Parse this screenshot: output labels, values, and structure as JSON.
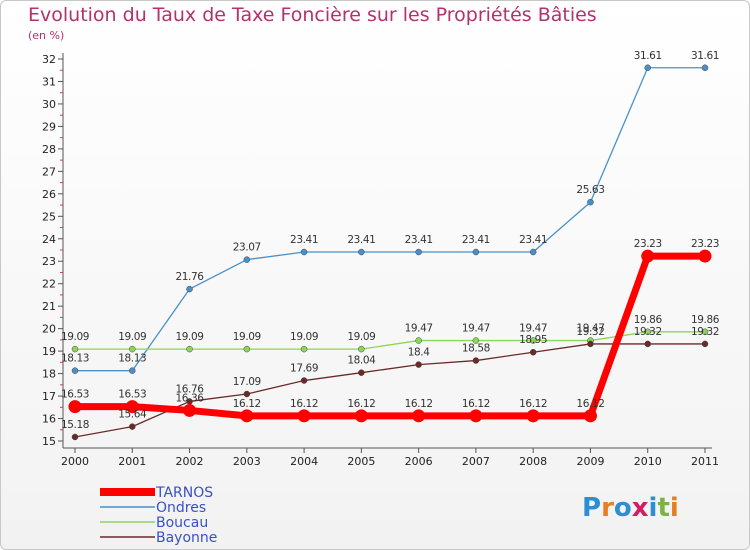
{
  "title": "Evolution du Taux de Taxe Foncière sur les Propriétés Bâties",
  "unit": "(en %)",
  "brand": {
    "letters": [
      "P",
      "r",
      "o",
      "x",
      "i",
      "t",
      "i"
    ],
    "colors": [
      "#2c8fd4",
      "#e67e22",
      "#2c8fd4",
      "#d81b60",
      "#2c8fd4",
      "#7cb342",
      "#e67e22"
    ]
  },
  "chart_data": {
    "type": "line",
    "title": "Evolution du Taux de Taxe Foncière sur les Propriétés Bâties",
    "ylabel": "(en %)",
    "xlabel": "",
    "x": [
      "2000",
      "2001",
      "2002",
      "2003",
      "2004",
      "2005",
      "2006",
      "2007",
      "2008",
      "2009",
      "2010",
      "2011"
    ],
    "ylim": [
      15,
      32
    ],
    "yticks": [
      15,
      16,
      17,
      18,
      19,
      20,
      21,
      22,
      23,
      24,
      25,
      26,
      27,
      28,
      29,
      30,
      31,
      32
    ],
    "series": [
      {
        "name": "TARNOS",
        "color": "#ff0000",
        "values": [
          16.53,
          16.53,
          16.36,
          16.12,
          16.12,
          16.12,
          16.12,
          16.12,
          16.12,
          16.12,
          23.23,
          23.23
        ],
        "labels": [
          "16.53",
          "16.53",
          "16.36",
          "16.12",
          "16.12",
          "16.12",
          "16.12",
          "16.12",
          "16.12",
          "16.12",
          "23.23",
          "23.23"
        ]
      },
      {
        "name": "Ondres",
        "color": "#4a90c8",
        "values": [
          18.13,
          18.13,
          21.76,
          23.07,
          23.41,
          23.41,
          23.41,
          23.41,
          23.41,
          25.63,
          31.61,
          31.61
        ],
        "labels": [
          "18.13",
          "18.13",
          "21.76",
          "23.07",
          "23.41",
          "23.41",
          "23.41",
          "23.41",
          "23.41",
          "25.63",
          "31.61",
          "31.61"
        ]
      },
      {
        "name": "Boucau",
        "color": "#8fd45a",
        "values": [
          19.09,
          19.09,
          19.09,
          19.09,
          19.09,
          19.09,
          19.47,
          19.47,
          19.47,
          19.47,
          19.86,
          19.86
        ],
        "labels": [
          "19.09",
          "19.09",
          "19.09",
          "19.09",
          "19.09",
          "19.09",
          "19.47",
          "19.47",
          "19.47",
          "19.47",
          "19.86",
          "19.86"
        ]
      },
      {
        "name": "Bayonne",
        "color": "#6b2a2a",
        "values": [
          15.18,
          15.64,
          16.76,
          17.09,
          17.69,
          18.04,
          18.4,
          18.58,
          18.95,
          19.32,
          19.32,
          19.32
        ],
        "labels": [
          "15.18",
          "15.64",
          "16.76",
          "17.09",
          "17.69",
          "18.04",
          "18.4",
          "18.58",
          "18.95",
          "19.32",
          "19.32",
          "19.32"
        ]
      }
    ],
    "grid": false,
    "legend": "bottom-left"
  }
}
